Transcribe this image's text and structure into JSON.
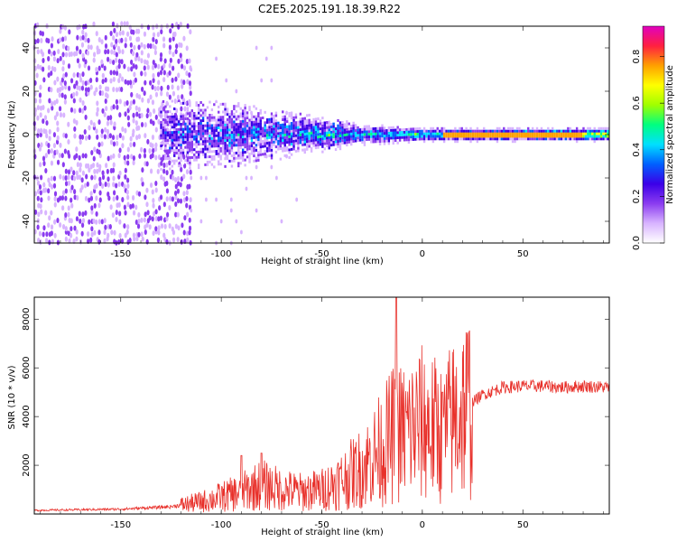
{
  "title": "C2E5.2025.191.18.39.R22",
  "colors": {
    "snr_line": "#e8302a",
    "axes": "#000000",
    "colormap": [
      "#ffffff",
      "#d8b4ff",
      "#8b3cf0",
      "#3b00e8",
      "#0060ff",
      "#00e0ff",
      "#00ff80",
      "#a0ff00",
      "#ffff00",
      "#ffa000",
      "#ff2040",
      "#e000c0"
    ]
  },
  "chart_data": [
    {
      "type": "heatmap",
      "title": "C2E5.2025.191.18.39.R22",
      "xlabel": "Height of straight line (km)",
      "ylabel": "Frequency (Hz)",
      "xlim": [
        -193,
        93
      ],
      "ylim": [
        -50,
        50
      ],
      "xticks": [
        "-150",
        "-100",
        "-50",
        "0",
        "50"
      ],
      "yticks": [
        "-40",
        "-20",
        "0",
        "20",
        "40"
      ],
      "colorbar": {
        "label": "Normalized spectral amplitude",
        "range": [
          0,
          0.93
        ],
        "ticks": [
          "0.0",
          "0.2",
          "0.4",
          "0.6",
          "0.8"
        ]
      },
      "structure": {
        "noise_region_x": [
          -193,
          -115
        ],
        "signal_onset_x": -130,
        "center_frequency_hz": 0,
        "band_halfwidth_hz": [
          {
            "x": -130,
            "hw": 10
          },
          {
            "x": -90,
            "hw": 9
          },
          {
            "x": -60,
            "hw": 6
          },
          {
            "x": -30,
            "hw": 3
          },
          {
            "x": 0,
            "hw": 2
          },
          {
            "x": 30,
            "hw": 2
          },
          {
            "x": 93,
            "hw": 2
          }
        ],
        "peak_amplitude_x": [
          10,
          80
        ]
      }
    },
    {
      "type": "line",
      "xlabel": "Height of straight line (km)",
      "ylabel": "SNR (10 * v/v)",
      "xlim": [
        -193,
        93
      ],
      "ylim": [
        0,
        8900
      ],
      "xticks": [
        "-150",
        "-100",
        "-50",
        "0",
        "50"
      ],
      "yticks": [
        "2000",
        "4000",
        "6000",
        "8000"
      ],
      "series": [
        {
          "color": "#e8302a",
          "x": [
            -193,
            -150,
            -125,
            -110,
            -100,
            -90,
            -80,
            -70,
            -60,
            -50,
            -40,
            -30,
            -20,
            -13,
            -10,
            0,
            10,
            15,
            20,
            30,
            40,
            50,
            60,
            70,
            80,
            93
          ],
          "values": [
            150,
            200,
            300,
            500,
            700,
            900,
            1200,
            1000,
            900,
            1000,
            1400,
            1900,
            2700,
            3400,
            3300,
            3700,
            3300,
            3800,
            4300,
            4900,
            5200,
            5250,
            5250,
            5200,
            5250,
            5200
          ],
          "spikes": [
            {
              "x": -13,
              "y": 8900
            },
            {
              "x": 10,
              "y": 5000
            },
            {
              "x": -80,
              "y": 2500
            },
            {
              "x": -90,
              "y": 2400
            }
          ]
        }
      ]
    }
  ]
}
